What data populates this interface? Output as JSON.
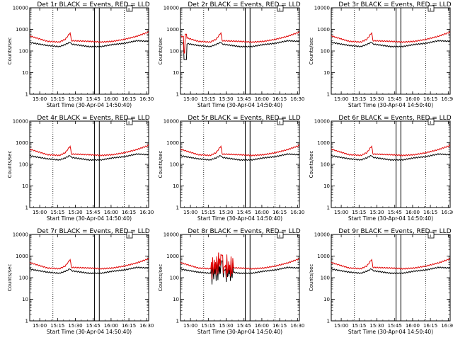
{
  "chart_data": [
    {
      "type": "line",
      "title": "Det 1r BLACK = Events, RED = LLD",
      "xlabel": "Start Time (30-Apr-04 14:50:40)",
      "ylabel": "Counts/sec",
      "yscale": "log",
      "ylim": [
        1,
        10000
      ],
      "xlim_minutes": [
        0,
        100
      ],
      "xticks": [
        "15:00",
        "15:15",
        "15:30",
        "15:45",
        "16:00",
        "16:15",
        "16:30"
      ],
      "yticks": [
        "1",
        "10",
        "100",
        "1000",
        "10000"
      ],
      "dotted_lines_min": [
        19.5,
        79.5
      ],
      "solid_lines_min": [
        54.5,
        58.5
      ],
      "anomaly": "none",
      "series": [
        {
          "name": "Events",
          "color": "#000000",
          "key_points_min": [
            0,
            15,
            25,
            30,
            34,
            35,
            50,
            60,
            65,
            70,
            80,
            90,
            100
          ],
          "values": [
            250,
            180,
            160,
            200,
            260,
            210,
            160,
            160,
            180,
            200,
            230,
            300,
            280
          ]
        },
        {
          "name": "LLD",
          "color": "#e00000",
          "key_points_min": [
            0,
            15,
            25,
            30,
            34,
            35,
            50,
            60,
            65,
            70,
            80,
            90,
            100
          ],
          "values": [
            500,
            280,
            260,
            350,
            700,
            300,
            280,
            260,
            270,
            280,
            350,
            480,
            750
          ]
        }
      ]
    },
    {
      "type": "line",
      "title": "Det 2r BLACK = Events, RED = LLD",
      "xlabel": "Start Time (30-Apr-04 14:50:40)",
      "ylabel": "Counts/sec",
      "yscale": "log",
      "ylim": [
        1,
        10000
      ],
      "xlim_minutes": [
        0,
        100
      ],
      "xticks": [
        "15:00",
        "15:15",
        "15:30",
        "15:45",
        "16:00",
        "16:15",
        "16:30"
      ],
      "yticks": [
        "1",
        "10",
        "100",
        "1000",
        "10000"
      ],
      "dotted_lines_min": [
        19.5,
        79.5
      ],
      "solid_lines_min": [
        54.5,
        58.5
      ],
      "anomaly": "early dip",
      "series": [
        {
          "name": "Events",
          "color": "#000000",
          "key_points_min": [
            0,
            15,
            25,
            30,
            34,
            35,
            50,
            60,
            65,
            70,
            80,
            90,
            100
          ],
          "values": [
            250,
            180,
            160,
            200,
            260,
            210,
            160,
            160,
            180,
            200,
            230,
            300,
            280
          ]
        },
        {
          "name": "LLD",
          "color": "#e00000",
          "key_points_min": [
            0,
            15,
            25,
            30,
            34,
            35,
            50,
            60,
            65,
            70,
            80,
            90,
            100
          ],
          "values": [
            500,
            280,
            260,
            350,
            700,
            300,
            280,
            260,
            270,
            280,
            350,
            480,
            750
          ]
        }
      ]
    },
    {
      "type": "line",
      "title": "Det 3r BLACK = Events, RED = LLD",
      "xlabel": "Start Time (30-Apr-04 14:50:40)",
      "ylabel": "Counts/sec",
      "yscale": "log",
      "ylim": [
        1,
        10000
      ],
      "xlim_minutes": [
        0,
        100
      ],
      "xticks": [
        "15:00",
        "15:15",
        "15:30",
        "15:45",
        "16:00",
        "16:15",
        "16:30"
      ],
      "yticks": [
        "1",
        "10",
        "100",
        "1000",
        "10000"
      ],
      "dotted_lines_min": [
        19.5,
        79.5
      ],
      "solid_lines_min": [
        54.5,
        58.5
      ],
      "anomaly": "none",
      "series": [
        {
          "name": "Events",
          "color": "#000000",
          "key_points_min": [
            0,
            15,
            25,
            30,
            34,
            35,
            50,
            60,
            65,
            70,
            80,
            90,
            100
          ],
          "values": [
            250,
            180,
            160,
            200,
            260,
            210,
            160,
            160,
            180,
            200,
            230,
            300,
            280
          ]
        },
        {
          "name": "LLD",
          "color": "#e00000",
          "key_points_min": [
            0,
            15,
            25,
            30,
            34,
            35,
            50,
            60,
            65,
            70,
            80,
            90,
            100
          ],
          "values": [
            500,
            280,
            260,
            350,
            700,
            300,
            280,
            260,
            270,
            280,
            350,
            480,
            750
          ]
        }
      ]
    },
    {
      "type": "line",
      "title": "Det 4r BLACK = Events, RED = LLD",
      "xlabel": "Start Time (30-Apr-04 14:50:40)",
      "ylabel": "Counts/sec",
      "yscale": "log",
      "ylim": [
        1,
        10000
      ],
      "xlim_minutes": [
        0,
        100
      ],
      "xticks": [
        "15:00",
        "15:15",
        "15:30",
        "15:45",
        "16:00",
        "16:15",
        "16:30"
      ],
      "yticks": [
        "1",
        "10",
        "100",
        "1000",
        "10000"
      ],
      "dotted_lines_min": [
        19.5,
        79.5
      ],
      "solid_lines_min": [
        54.5,
        58.5
      ],
      "anomaly": "none",
      "series": [
        {
          "name": "Events",
          "color": "#000000",
          "key_points_min": [
            0,
            15,
            25,
            30,
            34,
            35,
            50,
            60,
            65,
            70,
            80,
            90,
            100
          ],
          "values": [
            250,
            180,
            160,
            200,
            260,
            210,
            160,
            160,
            180,
            200,
            230,
            300,
            280
          ]
        },
        {
          "name": "LLD",
          "color": "#e00000",
          "key_points_min": [
            0,
            15,
            25,
            30,
            34,
            35,
            50,
            60,
            65,
            70,
            80,
            90,
            100
          ],
          "values": [
            500,
            280,
            260,
            350,
            700,
            300,
            280,
            260,
            270,
            280,
            350,
            480,
            750
          ]
        }
      ]
    },
    {
      "type": "line",
      "title": "Det 5r BLACK = Events, RED = LLD",
      "xlabel": "Start Time (30-Apr-04 14:50:40)",
      "ylabel": "Counts/sec",
      "yscale": "log",
      "ylim": [
        1,
        10000
      ],
      "xlim_minutes": [
        0,
        100
      ],
      "xticks": [
        "15:00",
        "15:15",
        "15:30",
        "15:45",
        "16:00",
        "16:15",
        "16:30"
      ],
      "yticks": [
        "1",
        "10",
        "100",
        "1000",
        "10000"
      ],
      "dotted_lines_min": [
        19.5,
        79.5
      ],
      "solid_lines_min": [
        54.5,
        58.5
      ],
      "anomaly": "none",
      "series": [
        {
          "name": "Events",
          "color": "#000000",
          "key_points_min": [
            0,
            15,
            25,
            30,
            34,
            35,
            50,
            60,
            65,
            70,
            80,
            90,
            100
          ],
          "values": [
            250,
            180,
            160,
            200,
            260,
            210,
            160,
            160,
            180,
            200,
            230,
            300,
            280
          ]
        },
        {
          "name": "LLD",
          "color": "#e00000",
          "key_points_min": [
            0,
            15,
            25,
            30,
            34,
            35,
            50,
            60,
            65,
            70,
            80,
            90,
            100
          ],
          "values": [
            500,
            280,
            260,
            350,
            700,
            300,
            280,
            260,
            270,
            280,
            350,
            480,
            750
          ]
        }
      ]
    },
    {
      "type": "line",
      "title": "Det 6r BLACK = Events, RED = LLD",
      "xlabel": "Start Time (30-Apr-04 14:50:40)",
      "ylabel": "Counts/sec",
      "yscale": "log",
      "ylim": [
        1,
        10000
      ],
      "xlim_minutes": [
        0,
        100
      ],
      "xticks": [
        "15:00",
        "15:15",
        "15:30",
        "15:45",
        "16:00",
        "16:15",
        "16:30"
      ],
      "yticks": [
        "1",
        "10",
        "100",
        "1000",
        "10000"
      ],
      "dotted_lines_min": [
        19.5,
        79.5
      ],
      "solid_lines_min": [
        54.5,
        58.5
      ],
      "anomaly": "none",
      "series": [
        {
          "name": "Events",
          "color": "#000000",
          "key_points_min": [
            0,
            15,
            25,
            30,
            34,
            35,
            50,
            60,
            65,
            70,
            80,
            90,
            100
          ],
          "values": [
            250,
            180,
            160,
            200,
            260,
            210,
            160,
            160,
            180,
            200,
            230,
            300,
            280
          ]
        },
        {
          "name": "LLD",
          "color": "#e00000",
          "key_points_min": [
            0,
            15,
            25,
            30,
            34,
            35,
            50,
            60,
            65,
            70,
            80,
            90,
            100
          ],
          "values": [
            500,
            280,
            260,
            350,
            700,
            300,
            280,
            260,
            270,
            280,
            350,
            480,
            750
          ]
        }
      ]
    },
    {
      "type": "line",
      "title": "Det 7r BLACK = Events, RED = LLD",
      "xlabel": "Start Time (30-Apr-04 14:50:40)",
      "ylabel": "Counts/sec",
      "yscale": "log",
      "ylim": [
        1,
        10000
      ],
      "xlim_minutes": [
        0,
        100
      ],
      "xticks": [
        "15:00",
        "15:15",
        "15:30",
        "15:45",
        "16:00",
        "16:15",
        "16:30"
      ],
      "yticks": [
        "1",
        "10",
        "100",
        "1000",
        "10000"
      ],
      "dotted_lines_min": [
        19.5,
        79.5
      ],
      "solid_lines_min": [
        54.5,
        58.5
      ],
      "anomaly": "none",
      "series": [
        {
          "name": "Events",
          "color": "#000000",
          "key_points_min": [
            0,
            15,
            25,
            30,
            34,
            35,
            50,
            60,
            65,
            70,
            80,
            90,
            100
          ],
          "values": [
            250,
            180,
            160,
            200,
            260,
            210,
            160,
            160,
            180,
            200,
            230,
            300,
            280
          ]
        },
        {
          "name": "LLD",
          "color": "#e00000",
          "key_points_min": [
            0,
            15,
            25,
            30,
            34,
            35,
            50,
            60,
            65,
            70,
            80,
            90,
            100
          ],
          "values": [
            500,
            280,
            260,
            350,
            700,
            300,
            280,
            260,
            270,
            280,
            350,
            480,
            750
          ]
        }
      ]
    },
    {
      "type": "line",
      "title": "Det 8r BLACK = Events, RED = LLD",
      "xlabel": "Start Time (30-Apr-04 14:50:40)",
      "ylabel": "Counts/sec",
      "yscale": "log",
      "ylim": [
        1,
        10000
      ],
      "xlim_minutes": [
        0,
        100
      ],
      "xticks": [
        "15:00",
        "15:15",
        "15:30",
        "15:45",
        "16:00",
        "16:15",
        "16:30"
      ],
      "yticks": [
        "1",
        "10",
        "100",
        "1000",
        "10000"
      ],
      "dotted_lines_min": [
        19.5,
        79.5
      ],
      "solid_lines_min": [
        54.5,
        58.5
      ],
      "anomaly": "noisy spikes",
      "series": [
        {
          "name": "Events",
          "color": "#000000",
          "key_points_min": [
            0,
            15,
            25,
            30,
            34,
            35,
            50,
            60,
            65,
            70,
            80,
            90,
            100
          ],
          "values": [
            250,
            180,
            160,
            200,
            260,
            210,
            160,
            160,
            180,
            200,
            230,
            300,
            280
          ]
        },
        {
          "name": "LLD",
          "color": "#e00000",
          "key_points_min": [
            0,
            15,
            25,
            30,
            34,
            35,
            50,
            60,
            65,
            70,
            80,
            90,
            100
          ],
          "values": [
            500,
            280,
            260,
            350,
            700,
            300,
            280,
            260,
            270,
            280,
            350,
            480,
            750
          ]
        }
      ]
    },
    {
      "type": "line",
      "title": "Det 9r BLACK = Events, RED = LLD",
      "xlabel": "Start Time (30-Apr-04 14:50:40)",
      "ylabel": "Counts/sec",
      "yscale": "log",
      "ylim": [
        1,
        10000
      ],
      "xlim_minutes": [
        0,
        100
      ],
      "xticks": [
        "15:00",
        "15:15",
        "15:30",
        "15:45",
        "16:00",
        "16:15",
        "16:30"
      ],
      "yticks": [
        "1",
        "10",
        "100",
        "1000",
        "10000"
      ],
      "dotted_lines_min": [
        19.5,
        79.5
      ],
      "solid_lines_min": [
        54.5,
        58.5
      ],
      "anomaly": "none",
      "series": [
        {
          "name": "Events",
          "color": "#000000",
          "key_points_min": [
            0,
            15,
            25,
            30,
            34,
            35,
            50,
            60,
            65,
            70,
            80,
            90,
            100
          ],
          "values": [
            250,
            180,
            160,
            200,
            260,
            210,
            160,
            160,
            180,
            200,
            230,
            300,
            280
          ]
        },
        {
          "name": "LLD",
          "color": "#e00000",
          "key_points_min": [
            0,
            15,
            25,
            30,
            34,
            35,
            50,
            60,
            65,
            70,
            80,
            90,
            100
          ],
          "values": [
            500,
            280,
            260,
            350,
            700,
            300,
            280,
            260,
            270,
            280,
            350,
            480,
            750
          ]
        }
      ]
    }
  ]
}
